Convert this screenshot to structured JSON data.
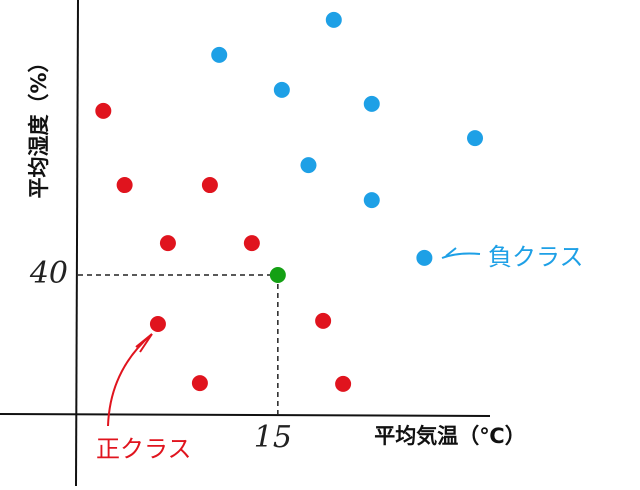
{
  "chart_data": {
    "type": "scatter",
    "x_label": "平均気温（℃）",
    "y_label": "平均湿度（%）",
    "xlim": [
      0,
      31
    ],
    "ylim": [
      0,
      118
    ],
    "xticks": [
      15
    ],
    "yticks": [
      40
    ],
    "series": [
      {
        "name": "正クラス",
        "color": "#e0141e",
        "x": [
          1.9,
          3.5,
          9.9,
          6.75,
          13.05,
          6,
          18.4,
          9.15,
          19.9
        ],
        "values": [
          86.9,
          65.7,
          65.7,
          49.1,
          49.1,
          26,
          26.9,
          9.1,
          8.9
        ]
      },
      {
        "name": "負クラス",
        "color": "#1ea0e6",
        "x": [
          19.2,
          10.6,
          15.3,
          22.05,
          29.8,
          17.3,
          22.05,
          26
        ],
        "values": [
          112.9,
          102.9,
          92.9,
          88.9,
          79.1,
          71.4,
          61.4,
          44.9
        ]
      },
      {
        "color": "#14a014",
        "x": [
          15
        ],
        "values": [
          40
        ]
      }
    ]
  }
}
